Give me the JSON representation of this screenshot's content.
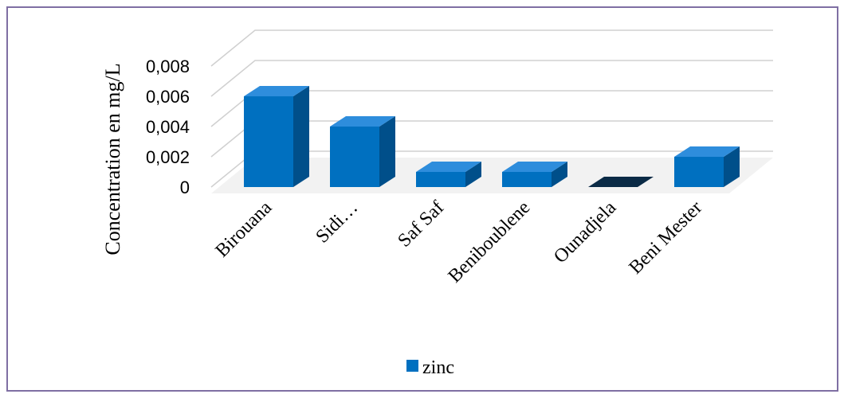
{
  "chart_data": {
    "type": "bar",
    "three_d": true,
    "title": "",
    "xlabel": "",
    "ylabel": "Concentration en mg/L",
    "categories": [
      "Birouana",
      "Sidi…",
      "Saf Saf",
      "Beniboublene",
      "Ounadjela",
      "Beni Mester"
    ],
    "series": [
      {
        "name": "zinc",
        "values": [
          0.006,
          0.004,
          0.001,
          0.001,
          0,
          0.002
        ]
      }
    ],
    "yticks": [
      "0",
      "0,002",
      "0,004",
      "0,006",
      "0,008"
    ],
    "ylim": [
      0,
      0.008
    ],
    "grid": true,
    "legend_position": "bottom",
    "colors": {
      "bar_front": "#0070c0",
      "bar_top": "#2e8ddc",
      "bar_side": "#004f8a",
      "zero_bar": "#0b2b46",
      "grid": "#d0d0d0",
      "frame": "#7f6fa3"
    }
  }
}
